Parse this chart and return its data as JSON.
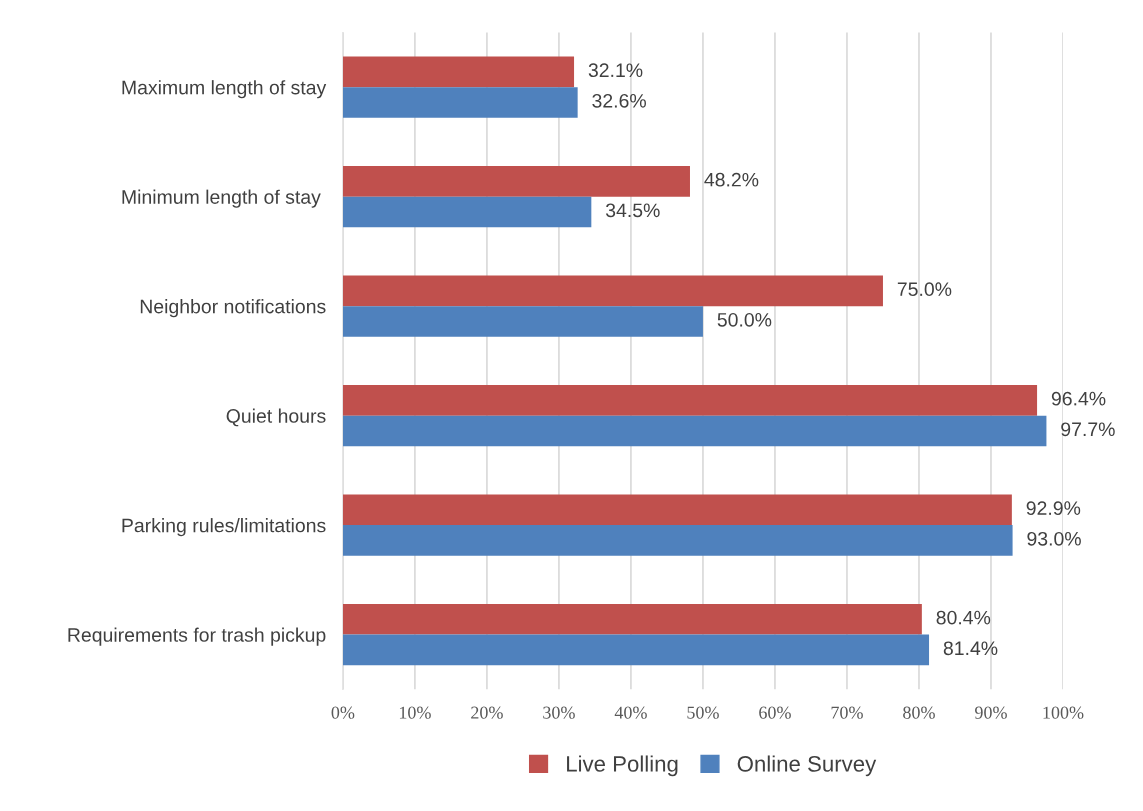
{
  "chart_data": {
    "type": "bar",
    "orientation": "horizontal",
    "categories": [
      "Maximum length of stay",
      "Minimum length of stay ",
      "Neighbor notifications",
      "Quiet hours",
      "Parking rules/limitations",
      "Requirements for trash pickup"
    ],
    "series": [
      {
        "name": "Live Polling",
        "color": "#c0504d",
        "values": [
          32.1,
          48.2,
          75.0,
          96.4,
          92.9,
          80.4
        ],
        "value_labels": [
          "32.1%",
          "48.2%",
          "75.0%",
          "96.4%",
          "92.9%",
          "80.4%"
        ]
      },
      {
        "name": "Online Survey",
        "color": "#4f81bd",
        "values": [
          32.6,
          34.5,
          50.0,
          97.7,
          93.0,
          81.4
        ],
        "value_labels": [
          "32.6%",
          "34.5%",
          "50.0%",
          "97.7%",
          "93.0%",
          "81.4%"
        ]
      }
    ],
    "xlim": [
      0,
      100
    ],
    "xticks": [
      {
        "value": 0,
        "label": "0%"
      },
      {
        "value": 10,
        "label": "10%"
      },
      {
        "value": 20,
        "label": "20%"
      },
      {
        "value": 30,
        "label": "30%"
      },
      {
        "value": 40,
        "label": "40%"
      },
      {
        "value": 50,
        "label": "50%"
      },
      {
        "value": 60,
        "label": "60%"
      },
      {
        "value": 70,
        "label": "70%"
      },
      {
        "value": 80,
        "label": "80%"
      },
      {
        "value": 90,
        "label": "90%"
      },
      {
        "value": 100,
        "label": "100%"
      }
    ],
    "grid": "x",
    "legend": "bottom"
  }
}
